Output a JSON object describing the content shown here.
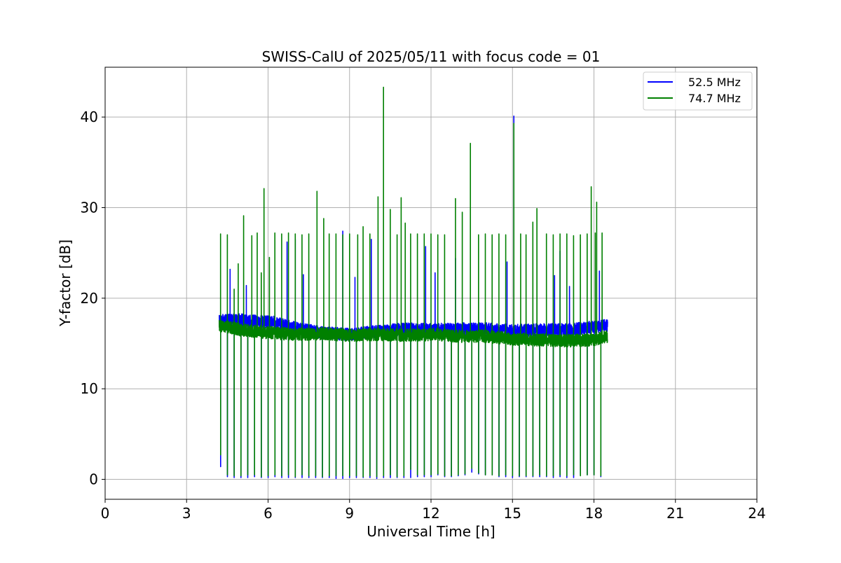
{
  "chart_data": {
    "type": "line",
    "title": "SWISS-CalU of 2025/05/11 with focus code = 01",
    "xlabel": "Universal Time [h]",
    "ylabel": "Y-factor [dB]",
    "xlim": [
      0,
      24
    ],
    "ylim": [
      -2.2,
      45.5
    ],
    "xticks": [
      0,
      3,
      6,
      9,
      12,
      15,
      18,
      21,
      24
    ],
    "yticks": [
      0,
      10,
      20,
      30,
      40
    ],
    "grid": true,
    "legend_position": "top-right",
    "data_start_hour": 4.2,
    "data_end_hour": 18.5,
    "series": [
      {
        "name": "52.5 MHz",
        "color": "#0000ff",
        "baseline": [
          [
            4.2,
            17.5
          ],
          [
            5.0,
            17.6
          ],
          [
            5.9,
            17.4
          ],
          [
            6.3,
            17.3
          ],
          [
            7.0,
            16.7
          ],
          [
            8.0,
            16.2
          ],
          [
            9.0,
            16.0
          ],
          [
            10.0,
            16.3
          ],
          [
            11.0,
            16.6
          ],
          [
            12.0,
            16.5
          ],
          [
            13.0,
            16.6
          ],
          [
            14.0,
            16.6
          ],
          [
            15.0,
            16.4
          ],
          [
            16.0,
            16.5
          ],
          [
            17.0,
            16.5
          ],
          [
            18.0,
            16.8
          ],
          [
            18.5,
            17.0
          ]
        ],
        "spikes": [
          [
            4.6,
            23.2
          ],
          [
            5.2,
            21.4
          ],
          [
            6.7,
            26.2
          ],
          [
            7.0,
            26.5
          ],
          [
            7.3,
            22.6
          ],
          [
            8.75,
            27.4
          ],
          [
            9.2,
            22.3
          ],
          [
            9.8,
            26.5
          ],
          [
            11.8,
            25.7
          ],
          [
            12.15,
            22.8
          ],
          [
            12.9,
            24.4
          ],
          [
            14.8,
            24.0
          ],
          [
            15.05,
            40.1
          ],
          [
            16.55,
            22.5
          ],
          [
            16.75,
            25.2
          ],
          [
            17.1,
            21.3
          ],
          [
            18.2,
            23.0
          ]
        ],
        "dips": [
          [
            4.25,
            1.4
          ],
          [
            4.5,
            0.3
          ],
          [
            4.75,
            0.2
          ],
          [
            5.0,
            0.2
          ],
          [
            5.25,
            0.2
          ],
          [
            5.5,
            0.3
          ],
          [
            5.75,
            0.2
          ],
          [
            6.0,
            0.2
          ],
          [
            6.25,
            0.3
          ],
          [
            6.5,
            0.2
          ],
          [
            6.75,
            0.2
          ],
          [
            7.0,
            0.2
          ],
          [
            7.25,
            0.2
          ],
          [
            7.5,
            0.2
          ],
          [
            7.75,
            0.2
          ],
          [
            8.0,
            0.2
          ],
          [
            8.25,
            0.2
          ],
          [
            8.5,
            0.1
          ],
          [
            8.75,
            0.1
          ],
          [
            9.0,
            0.2
          ],
          [
            9.25,
            0.2
          ],
          [
            9.5,
            0.2
          ],
          [
            9.75,
            0.2
          ],
          [
            10.0,
            0.1
          ],
          [
            10.25,
            0.2
          ],
          [
            10.5,
            0.2
          ],
          [
            10.75,
            0.2
          ],
          [
            11.0,
            0.2
          ],
          [
            11.25,
            0.2
          ],
          [
            11.5,
            0.3
          ],
          [
            11.75,
            0.3
          ],
          [
            12.0,
            0.3
          ],
          [
            12.25,
            0.5
          ],
          [
            12.5,
            0.3
          ],
          [
            12.75,
            0.3
          ],
          [
            13.0,
            0.4
          ],
          [
            13.25,
            0.5
          ],
          [
            13.5,
            0.8
          ],
          [
            13.75,
            0.6
          ],
          [
            14.0,
            0.5
          ],
          [
            14.25,
            0.5
          ],
          [
            14.5,
            0.3
          ],
          [
            14.75,
            0.3
          ],
          [
            15.0,
            0.2
          ],
          [
            15.25,
            0.3
          ],
          [
            15.5,
            0.3
          ],
          [
            15.75,
            0.3
          ],
          [
            16.0,
            0.3
          ],
          [
            16.25,
            0.3
          ],
          [
            16.5,
            0.2
          ],
          [
            16.75,
            0.3
          ],
          [
            17.0,
            0.2
          ],
          [
            17.25,
            0.2
          ],
          [
            17.5,
            0.5
          ],
          [
            17.75,
            0.5
          ],
          [
            18.0,
            0.5
          ],
          [
            18.25,
            0.3
          ]
        ]
      },
      {
        "name": "74.7 MHz",
        "color": "#008000",
        "baseline": [
          [
            4.2,
            17.0
          ],
          [
            5.0,
            16.5
          ],
          [
            6.0,
            16.2
          ],
          [
            7.0,
            16.0
          ],
          [
            8.0,
            16.1
          ],
          [
            9.0,
            15.9
          ],
          [
            10.0,
            16.0
          ],
          [
            11.0,
            15.9
          ],
          [
            12.0,
            16.0
          ],
          [
            13.0,
            15.8
          ],
          [
            14.0,
            15.8
          ],
          [
            15.0,
            15.5
          ],
          [
            16.0,
            15.4
          ],
          [
            17.0,
            15.3
          ],
          [
            18.0,
            15.4
          ],
          [
            18.5,
            15.8
          ]
        ],
        "spikes": [
          [
            4.25,
            27.1
          ],
          [
            4.5,
            27.0
          ],
          [
            4.75,
            21.0
          ],
          [
            4.9,
            23.8
          ],
          [
            5.1,
            29.1
          ],
          [
            5.4,
            26.9
          ],
          [
            5.6,
            27.2
          ],
          [
            5.75,
            22.8
          ],
          [
            5.85,
            32.1
          ],
          [
            6.05,
            24.5
          ],
          [
            6.25,
            27.2
          ],
          [
            6.5,
            27.1
          ],
          [
            6.75,
            27.2
          ],
          [
            7.0,
            27.1
          ],
          [
            7.25,
            27.0
          ],
          [
            7.5,
            27.1
          ],
          [
            7.8,
            31.8
          ],
          [
            8.05,
            28.8
          ],
          [
            8.25,
            27.1
          ],
          [
            8.5,
            27.1
          ],
          [
            8.75,
            27.0
          ],
          [
            9.0,
            27.1
          ],
          [
            9.3,
            27.0
          ],
          [
            9.5,
            27.9
          ],
          [
            9.75,
            27.1
          ],
          [
            10.05,
            31.2
          ],
          [
            10.25,
            43.3
          ],
          [
            10.5,
            29.8
          ],
          [
            10.75,
            27.0
          ],
          [
            10.9,
            31.1
          ],
          [
            11.05,
            28.3
          ],
          [
            11.25,
            27.1
          ],
          [
            11.5,
            27.1
          ],
          [
            11.75,
            27.1
          ],
          [
            12.0,
            27.1
          ],
          [
            12.25,
            27.0
          ],
          [
            12.5,
            27.0
          ],
          [
            12.9,
            31.0
          ],
          [
            13.15,
            29.5
          ],
          [
            13.45,
            37.1
          ],
          [
            13.75,
            27.0
          ],
          [
            14.0,
            27.1
          ],
          [
            14.25,
            27.0
          ],
          [
            14.5,
            27.1
          ],
          [
            14.75,
            27.0
          ],
          [
            15.05,
            39.3
          ],
          [
            15.3,
            27.1
          ],
          [
            15.5,
            27.0
          ],
          [
            15.75,
            28.4
          ],
          [
            15.9,
            29.9
          ],
          [
            16.25,
            27.1
          ],
          [
            16.5,
            27.0
          ],
          [
            16.75,
            27.1
          ],
          [
            17.0,
            27.1
          ],
          [
            17.25,
            26.9
          ],
          [
            17.5,
            27.0
          ],
          [
            17.75,
            27.1
          ],
          [
            17.9,
            32.3
          ],
          [
            18.05,
            27.2
          ],
          [
            18.1,
            30.6
          ],
          [
            18.3,
            27.2
          ]
        ],
        "dips": [
          [
            4.25,
            2.7
          ],
          [
            4.5,
            0.5
          ],
          [
            4.75,
            0.4
          ],
          [
            5.0,
            0.4
          ],
          [
            5.25,
            0.5
          ],
          [
            5.5,
            0.5
          ],
          [
            5.75,
            0.3
          ],
          [
            6.0,
            0.4
          ],
          [
            6.25,
            0.5
          ],
          [
            6.5,
            0.4
          ],
          [
            6.75,
            0.5
          ],
          [
            7.0,
            0.3
          ],
          [
            7.25,
            0.5
          ],
          [
            7.5,
            0.4
          ],
          [
            7.75,
            0.4
          ],
          [
            8.0,
            0.3
          ],
          [
            8.25,
            0.4
          ],
          [
            8.5,
            0.4
          ],
          [
            8.75,
            0.4
          ],
          [
            9.0,
            0.4
          ],
          [
            9.25,
            0.4
          ],
          [
            9.5,
            0.3
          ],
          [
            9.75,
            0.4
          ],
          [
            10.0,
            0.3
          ],
          [
            10.25,
            0.4
          ],
          [
            10.5,
            0.5
          ],
          [
            10.75,
            0.3
          ],
          [
            11.0,
            0.4
          ],
          [
            11.25,
            1.1
          ],
          [
            11.5,
            0.5
          ],
          [
            11.75,
            0.5
          ],
          [
            12.0,
            0.5
          ],
          [
            12.25,
            0.6
          ],
          [
            12.5,
            0.4
          ],
          [
            12.75,
            0.4
          ],
          [
            13.0,
            0.5
          ],
          [
            13.25,
            0.6
          ],
          [
            13.5,
            1.2
          ],
          [
            13.75,
            0.7
          ],
          [
            14.0,
            0.5
          ],
          [
            14.25,
            0.5
          ],
          [
            14.5,
            0.4
          ],
          [
            14.75,
            0.5
          ],
          [
            15.0,
            0.4
          ],
          [
            15.25,
            0.4
          ],
          [
            15.5,
            0.4
          ],
          [
            15.75,
            0.4
          ],
          [
            16.0,
            0.5
          ],
          [
            16.25,
            0.4
          ],
          [
            16.5,
            0.4
          ],
          [
            16.75,
            0.5
          ],
          [
            17.0,
            0.4
          ],
          [
            17.25,
            0.5
          ],
          [
            17.5,
            0.4
          ],
          [
            17.75,
            0.5
          ],
          [
            18.0,
            0.5
          ],
          [
            18.25,
            0.4
          ]
        ]
      }
    ]
  }
}
